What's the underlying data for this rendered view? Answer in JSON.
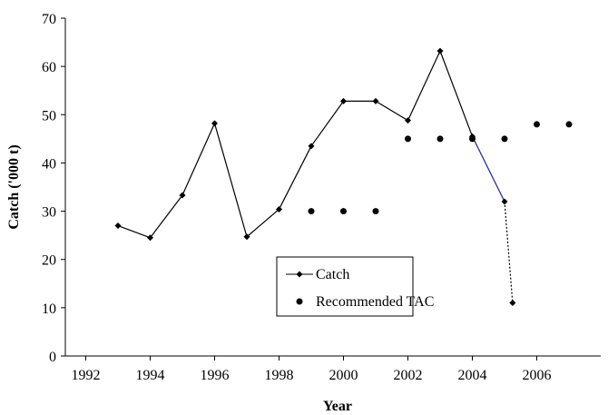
{
  "chart_data": {
    "type": "line",
    "x_label": "Year",
    "y_label": "Catch ('000 t)",
    "xlim": [
      1992,
      2008
    ],
    "xticks": [
      1992,
      1994,
      1996,
      1998,
      2000,
      2002,
      2004,
      2006
    ],
    "ylim": [
      0,
      70
    ],
    "yticks": [
      0,
      10,
      20,
      30,
      40,
      50,
      60,
      70
    ],
    "series": [
      {
        "name": "Catch",
        "color": "#000000",
        "marker": "diamond",
        "x": [
          1993,
          1994,
          1995,
          1996,
          1997,
          1998,
          1999,
          2000,
          2001,
          2002,
          2003,
          2004,
          2005,
          2005.25
        ],
        "values": [
          27,
          24.5,
          33.3,
          48.2,
          24.7,
          30.4,
          43.5,
          52.8,
          52.8,
          48.8,
          63.2,
          45.5,
          32,
          11
        ]
      },
      {
        "name": "Recommended TAC",
        "color": "#000000",
        "marker": "circle",
        "x": [
          1999,
          2000,
          2001,
          2002,
          2003,
          2004,
          2005,
          2006,
          2007
        ],
        "values": [
          30,
          30,
          30,
          45,
          45,
          45,
          45,
          48,
          48
        ]
      }
    ]
  }
}
